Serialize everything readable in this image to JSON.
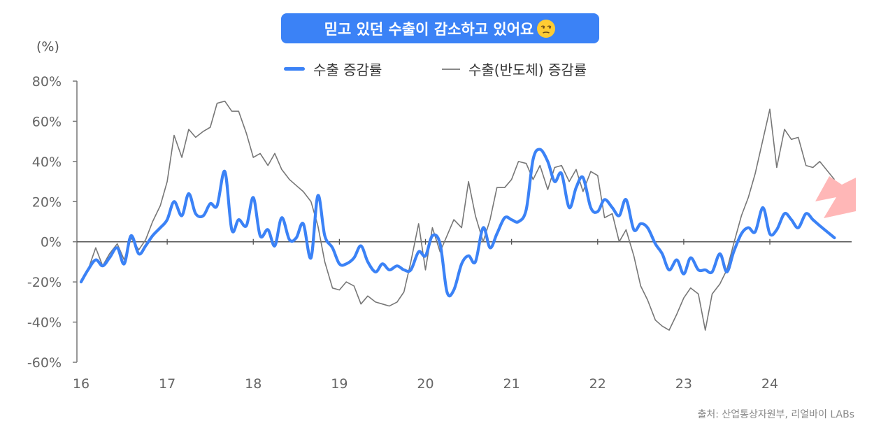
{
  "title": "믿고 있던 수출이 감소하고 있어요",
  "title_emoji": "unamused-face-icon",
  "unit_label": "(%)",
  "source": "출처: 산업통상자원부, 리얼바이 LABs",
  "colors": {
    "accent": "#3b82f6",
    "series_main": "#3b82f6",
    "series_semi": "#777777",
    "arrow": "#ffb3b3"
  },
  "chart_data": {
    "type": "line",
    "ylim": [
      -60,
      80
    ],
    "yticks": [
      "80%",
      "60%",
      "40%",
      "20%",
      "0%",
      "-20%",
      "-40%",
      "-60%"
    ],
    "ytick_values": [
      80,
      60,
      40,
      20,
      0,
      -20,
      -40,
      -60
    ],
    "xlim": [
      2016,
      2024.95
    ],
    "xticks": [
      "16",
      "17",
      "18",
      "19",
      "20",
      "21",
      "22",
      "23",
      "24"
    ],
    "xtick_values": [
      2016,
      2017,
      2018,
      2019,
      2020,
      2021,
      2022,
      2023,
      2024
    ],
    "legend": "top",
    "grid": false,
    "series": [
      {
        "name": "수출 증감률",
        "points": [
          [
            2016.0,
            -20
          ],
          [
            2016.08,
            -14
          ],
          [
            2016.17,
            -9
          ],
          [
            2016.25,
            -12
          ],
          [
            2016.33,
            -8
          ],
          [
            2016.42,
            -3
          ],
          [
            2016.5,
            -11
          ],
          [
            2016.58,
            3
          ],
          [
            2016.67,
            -6
          ],
          [
            2016.75,
            -2
          ],
          [
            2016.83,
            3
          ],
          [
            2016.92,
            7
          ],
          [
            2017.0,
            11
          ],
          [
            2017.08,
            20
          ],
          [
            2017.17,
            13
          ],
          [
            2017.25,
            24
          ],
          [
            2017.33,
            14
          ],
          [
            2017.42,
            13
          ],
          [
            2017.5,
            19
          ],
          [
            2017.58,
            18
          ],
          [
            2017.67,
            35
          ],
          [
            2017.75,
            6
          ],
          [
            2017.83,
            11
          ],
          [
            2017.92,
            8
          ],
          [
            2018.0,
            22
          ],
          [
            2018.08,
            3
          ],
          [
            2018.17,
            6
          ],
          [
            2018.25,
            -2
          ],
          [
            2018.33,
            12
          ],
          [
            2018.42,
            1
          ],
          [
            2018.5,
            2
          ],
          [
            2018.58,
            9
          ],
          [
            2018.67,
            -8
          ],
          [
            2018.75,
            23
          ],
          [
            2018.83,
            3
          ],
          [
            2018.92,
            -3
          ],
          [
            2019.0,
            -11
          ],
          [
            2019.08,
            -11
          ],
          [
            2019.17,
            -8
          ],
          [
            2019.25,
            -2
          ],
          [
            2019.33,
            -10
          ],
          [
            2019.42,
            -15
          ],
          [
            2019.5,
            -11
          ],
          [
            2019.58,
            -14
          ],
          [
            2019.67,
            -12
          ],
          [
            2019.75,
            -14
          ],
          [
            2019.83,
            -14
          ],
          [
            2019.92,
            -5
          ],
          [
            2020.0,
            -7
          ],
          [
            2020.08,
            3
          ],
          [
            2020.17,
            -1
          ],
          [
            2020.25,
            -25
          ],
          [
            2020.33,
            -24
          ],
          [
            2020.42,
            -11
          ],
          [
            2020.5,
            -7
          ],
          [
            2020.58,
            -10
          ],
          [
            2020.67,
            7
          ],
          [
            2020.75,
            -3
          ],
          [
            2020.83,
            4
          ],
          [
            2020.92,
            12
          ],
          [
            2021.0,
            11
          ],
          [
            2021.08,
            10
          ],
          [
            2021.17,
            16
          ],
          [
            2021.25,
            41
          ],
          [
            2021.33,
            46
          ],
          [
            2021.42,
            40
          ],
          [
            2021.5,
            30
          ],
          [
            2021.58,
            34
          ],
          [
            2021.67,
            17
          ],
          [
            2021.75,
            27
          ],
          [
            2021.83,
            32
          ],
          [
            2021.92,
            17
          ],
          [
            2022.0,
            15
          ],
          [
            2022.08,
            21
          ],
          [
            2022.17,
            17
          ],
          [
            2022.25,
            13
          ],
          [
            2022.33,
            21
          ],
          [
            2022.42,
            6
          ],
          [
            2022.5,
            9
          ],
          [
            2022.58,
            7
          ],
          [
            2022.67,
            -1
          ],
          [
            2022.75,
            -6
          ],
          [
            2022.83,
            -14
          ],
          [
            2022.92,
            -9
          ],
          [
            2023.0,
            -16
          ],
          [
            2023.08,
            -8
          ],
          [
            2023.17,
            -14
          ],
          [
            2023.25,
            -14
          ],
          [
            2023.33,
            -15
          ],
          [
            2023.42,
            -6
          ],
          [
            2023.5,
            -15
          ],
          [
            2023.58,
            -5
          ],
          [
            2023.67,
            4
          ],
          [
            2023.75,
            7
          ],
          [
            2023.83,
            5
          ],
          [
            2023.92,
            17
          ],
          [
            2024.0,
            4
          ],
          [
            2024.08,
            6
          ],
          [
            2024.17,
            14
          ],
          [
            2024.25,
            11
          ],
          [
            2024.33,
            7
          ],
          [
            2024.42,
            14
          ],
          [
            2024.5,
            11
          ],
          [
            2024.58,
            8
          ],
          [
            2024.75,
            2
          ]
        ]
      },
      {
        "name": "수출(반도체) 증감률",
        "points": [
          [
            2016.0,
            -19
          ],
          [
            2016.08,
            -14
          ],
          [
            2016.17,
            -3
          ],
          [
            2016.25,
            -12
          ],
          [
            2016.33,
            -6
          ],
          [
            2016.42,
            -1
          ],
          [
            2016.5,
            -9
          ],
          [
            2016.58,
            2
          ],
          [
            2016.67,
            -4
          ],
          [
            2016.75,
            1
          ],
          [
            2016.83,
            10
          ],
          [
            2016.92,
            18
          ],
          [
            2017.0,
            30
          ],
          [
            2017.08,
            53
          ],
          [
            2017.17,
            42
          ],
          [
            2017.25,
            56
          ],
          [
            2017.33,
            52
          ],
          [
            2017.42,
            55
          ],
          [
            2017.5,
            57
          ],
          [
            2017.58,
            69
          ],
          [
            2017.67,
            70
          ],
          [
            2017.75,
            65
          ],
          [
            2017.83,
            65
          ],
          [
            2017.92,
            54
          ],
          [
            2018.0,
            42
          ],
          [
            2018.08,
            44
          ],
          [
            2018.17,
            38
          ],
          [
            2018.25,
            44
          ],
          [
            2018.33,
            36
          ],
          [
            2018.42,
            31
          ],
          [
            2018.5,
            28
          ],
          [
            2018.58,
            25
          ],
          [
            2018.67,
            20
          ],
          [
            2018.75,
            8
          ],
          [
            2018.83,
            -10
          ],
          [
            2018.92,
            -23
          ],
          [
            2019.0,
            -24
          ],
          [
            2019.08,
            -20
          ],
          [
            2019.17,
            -22
          ],
          [
            2019.25,
            -31
          ],
          [
            2019.33,
            -27
          ],
          [
            2019.42,
            -30
          ],
          [
            2019.5,
            -31
          ],
          [
            2019.58,
            -32
          ],
          [
            2019.67,
            -30
          ],
          [
            2019.75,
            -25
          ],
          [
            2019.83,
            -10
          ],
          [
            2019.92,
            9
          ],
          [
            2020.0,
            -14
          ],
          [
            2020.08,
            7
          ],
          [
            2020.17,
            -5
          ],
          [
            2020.25,
            3
          ],
          [
            2020.33,
            11
          ],
          [
            2020.42,
            7
          ],
          [
            2020.5,
            30
          ],
          [
            2020.58,
            13
          ],
          [
            2020.67,
            0
          ],
          [
            2020.75,
            11
          ],
          [
            2020.83,
            27
          ],
          [
            2020.92,
            27
          ],
          [
            2021.0,
            31
          ],
          [
            2021.08,
            40
          ],
          [
            2021.17,
            39
          ],
          [
            2021.25,
            31
          ],
          [
            2021.33,
            38
          ],
          [
            2021.42,
            26
          ],
          [
            2021.5,
            37
          ],
          [
            2021.58,
            38
          ],
          [
            2021.67,
            30
          ],
          [
            2021.75,
            36
          ],
          [
            2021.83,
            25
          ],
          [
            2021.92,
            35
          ],
          [
            2022.0,
            33
          ],
          [
            2022.08,
            12
          ],
          [
            2022.17,
            14
          ],
          [
            2022.25,
            0
          ],
          [
            2022.33,
            6
          ],
          [
            2022.42,
            -7
          ],
          [
            2022.5,
            -22
          ],
          [
            2022.58,
            -29
          ],
          [
            2022.67,
            -39
          ],
          [
            2022.75,
            -42
          ],
          [
            2022.83,
            -44
          ],
          [
            2022.92,
            -36
          ],
          [
            2023.0,
            -28
          ],
          [
            2023.08,
            -23
          ],
          [
            2023.17,
            -26
          ],
          [
            2023.25,
            -44
          ],
          [
            2023.33,
            -26
          ],
          [
            2023.42,
            -21
          ],
          [
            2023.5,
            -14
          ],
          [
            2023.58,
            -1
          ],
          [
            2023.67,
            13
          ],
          [
            2023.75,
            22
          ],
          [
            2023.83,
            34
          ],
          [
            2023.92,
            51
          ],
          [
            2024.0,
            66
          ],
          [
            2024.08,
            37
          ],
          [
            2024.17,
            56
          ],
          [
            2024.25,
            51
          ],
          [
            2024.33,
            52
          ],
          [
            2024.42,
            38
          ],
          [
            2024.5,
            37
          ],
          [
            2024.58,
            40
          ],
          [
            2024.75,
            31
          ]
        ]
      }
    ]
  }
}
